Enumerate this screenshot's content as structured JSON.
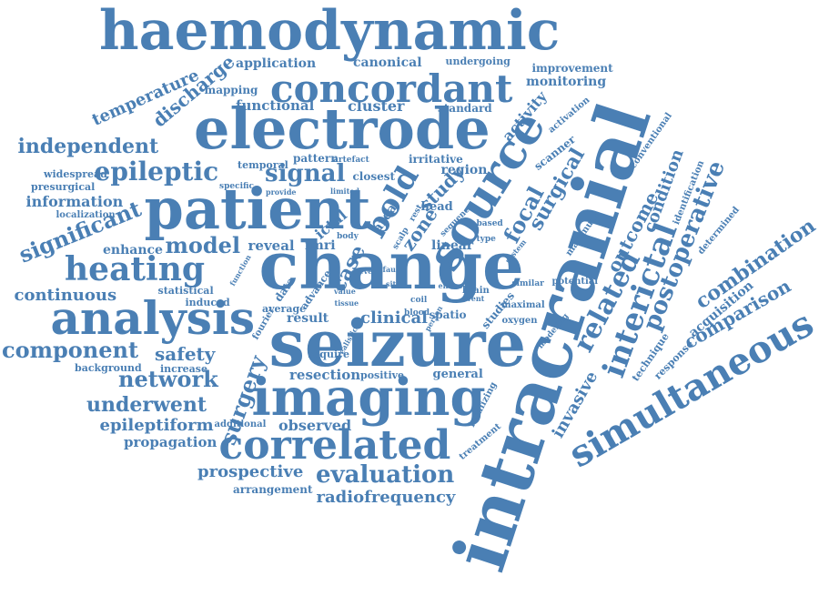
{
  "palette": {
    "word": "#4a7fb4",
    "background": "#ffffff"
  },
  "words": [
    {
      "id": "w01",
      "text": "haemodynamic"
    },
    {
      "id": "w02",
      "text": "concordant"
    },
    {
      "id": "w03",
      "text": "electrode"
    },
    {
      "id": "w04",
      "text": "patient"
    },
    {
      "id": "w05",
      "text": "change"
    },
    {
      "id": "w06",
      "text": "seizure"
    },
    {
      "id": "w07",
      "text": "imaging"
    },
    {
      "id": "w08",
      "text": "intracranial"
    },
    {
      "id": "w09",
      "text": "analysis"
    },
    {
      "id": "w10",
      "text": "source"
    },
    {
      "id": "w11",
      "text": "bold"
    },
    {
      "id": "w12",
      "text": "simultaneous"
    },
    {
      "id": "w13",
      "text": "correlated"
    },
    {
      "id": "w14",
      "text": "heating"
    },
    {
      "id": "w15",
      "text": "epileptic"
    },
    {
      "id": "w16",
      "text": "independent"
    },
    {
      "id": "w17",
      "text": "component"
    },
    {
      "id": "w18",
      "text": "network"
    },
    {
      "id": "w19",
      "text": "underwent"
    },
    {
      "id": "w20",
      "text": "evaluation"
    },
    {
      "id": "w21",
      "text": "significant"
    },
    {
      "id": "w22",
      "text": "continuous"
    },
    {
      "id": "w23",
      "text": "signal"
    },
    {
      "id": "w24",
      "text": "model"
    },
    {
      "id": "w25",
      "text": "interictal"
    },
    {
      "id": "w26",
      "text": "postoperative"
    },
    {
      "id": "w27",
      "text": "related"
    },
    {
      "id": "w28",
      "text": "surgery"
    },
    {
      "id": "w29",
      "text": "surgical"
    },
    {
      "id": "w30",
      "text": "focal"
    },
    {
      "id": "w31",
      "text": "outcome"
    },
    {
      "id": "w32",
      "text": "combination"
    },
    {
      "id": "w33",
      "text": "comparison"
    },
    {
      "id": "w34",
      "text": "temperature"
    },
    {
      "id": "w35",
      "text": "discharge"
    },
    {
      "id": "w36",
      "text": "application"
    },
    {
      "id": "w37",
      "text": "canonical"
    },
    {
      "id": "w38",
      "text": "undergoing"
    },
    {
      "id": "w39",
      "text": "improvement"
    },
    {
      "id": "w40",
      "text": "monitoring"
    },
    {
      "id": "w41",
      "text": "mapping"
    },
    {
      "id": "w42",
      "text": "functional"
    },
    {
      "id": "w43",
      "text": "cluster"
    },
    {
      "id": "w44",
      "text": "standard"
    },
    {
      "id": "w45",
      "text": "activity"
    },
    {
      "id": "w46",
      "text": "activation"
    },
    {
      "id": "w47",
      "text": "conventional"
    },
    {
      "id": "w48",
      "text": "condition"
    },
    {
      "id": "w49",
      "text": "identification"
    },
    {
      "id": "w50",
      "text": "determined"
    },
    {
      "id": "w51",
      "text": "information"
    },
    {
      "id": "w52",
      "text": "widespread"
    },
    {
      "id": "w53",
      "text": "presurgical"
    },
    {
      "id": "w54",
      "text": "localization"
    },
    {
      "id": "w55",
      "text": "temporal"
    },
    {
      "id": "w56",
      "text": "pattern"
    },
    {
      "id": "w57",
      "text": "artefact"
    },
    {
      "id": "w58",
      "text": "irritative"
    },
    {
      "id": "w59",
      "text": "specific"
    },
    {
      "id": "w60",
      "text": "closest"
    },
    {
      "id": "w61",
      "text": "region"
    },
    {
      "id": "w62",
      "text": "study"
    },
    {
      "id": "w63",
      "text": "scanner"
    },
    {
      "id": "w64",
      "text": "enhance"
    },
    {
      "id": "w65",
      "text": "reveal"
    },
    {
      "id": "w66",
      "text": "fmri"
    },
    {
      "id": "w67",
      "text": "ictal"
    },
    {
      "id": "w68",
      "text": "case"
    },
    {
      "id": "w69",
      "text": "zone"
    },
    {
      "id": "w70",
      "text": "head"
    },
    {
      "id": "w71",
      "text": "linear"
    },
    {
      "id": "w72",
      "text": "area"
    },
    {
      "id": "w73",
      "text": "based"
    },
    {
      "id": "w74",
      "text": "type"
    },
    {
      "id": "w75",
      "text": "maximum"
    },
    {
      "id": "w76",
      "text": "statistical"
    },
    {
      "id": "w77",
      "text": "induced"
    },
    {
      "id": "w78",
      "text": "function"
    },
    {
      "id": "w79",
      "text": "data"
    },
    {
      "id": "w80",
      "text": "advance"
    },
    {
      "id": "w81",
      "text": "average"
    },
    {
      "id": "w82",
      "text": "result"
    },
    {
      "id": "w83",
      "text": "clinical"
    },
    {
      "id": "w84",
      "text": "spatio"
    },
    {
      "id": "w85",
      "text": "studies"
    },
    {
      "id": "w86",
      "text": "maximal"
    },
    {
      "id": "w87",
      "text": "oxygen"
    },
    {
      "id": "w88",
      "text": "potential"
    },
    {
      "id": "w89",
      "text": "brain"
    },
    {
      "id": "w90",
      "text": "similar"
    },
    {
      "id": "w91",
      "text": "entire"
    },
    {
      "id": "w92",
      "text": "event"
    },
    {
      "id": "w93",
      "text": "modeling"
    },
    {
      "id": "w94",
      "text": "safety"
    },
    {
      "id": "w95",
      "text": "background"
    },
    {
      "id": "w96",
      "text": "increase"
    },
    {
      "id": "w97",
      "text": "fourier"
    },
    {
      "id": "w98",
      "text": "require"
    },
    {
      "id": "w99",
      "text": "resection"
    },
    {
      "id": "w100",
      "text": "positive"
    },
    {
      "id": "w101",
      "text": "general"
    },
    {
      "id": "w102",
      "text": "localizing"
    },
    {
      "id": "w103",
      "text": "treatment"
    },
    {
      "id": "w104",
      "text": "invasive"
    },
    {
      "id": "w105",
      "text": "technique"
    },
    {
      "id": "w106",
      "text": "response"
    },
    {
      "id": "w107",
      "text": "acquisition"
    },
    {
      "id": "w108",
      "text": "epileptiform"
    },
    {
      "id": "w109",
      "text": "additional"
    },
    {
      "id": "w110",
      "text": "observed"
    },
    {
      "id": "w111",
      "text": "propagation"
    },
    {
      "id": "w112",
      "text": "prospective"
    },
    {
      "id": "w113",
      "text": "arrangement"
    },
    {
      "id": "w114",
      "text": "radiofrequency"
    },
    {
      "id": "w115",
      "text": "realistic"
    },
    {
      "id": "w116",
      "text": "coil"
    },
    {
      "id": "w117",
      "text": "blood"
    },
    {
      "id": "w118",
      "text": "body"
    },
    {
      "id": "w119",
      "text": "tissue"
    },
    {
      "id": "w120",
      "text": "scalp"
    },
    {
      "id": "w121",
      "text": "limited"
    },
    {
      "id": "w122",
      "text": "provide"
    },
    {
      "id": "w123",
      "text": "sequence"
    },
    {
      "id": "w124",
      "text": "system"
    },
    {
      "id": "w125",
      "text": "value"
    },
    {
      "id": "w126",
      "text": "person"
    },
    {
      "id": "w127",
      "text": "fault"
    },
    {
      "id": "w128",
      "text": "rest"
    },
    {
      "id": "w129",
      "text": "level"
    },
    {
      "id": "w130",
      "text": "site"
    }
  ]
}
